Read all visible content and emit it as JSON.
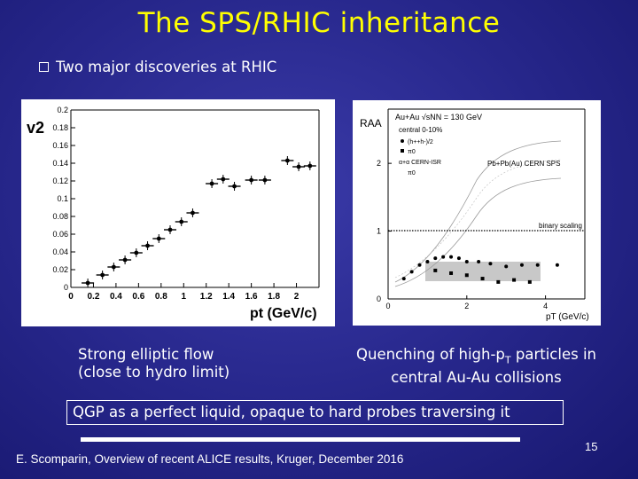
{
  "slide": {
    "title": "The SPS/RHIC inheritance",
    "bullet": "Two major discoveries at RHIC",
    "caption_left_line1": "Strong elliptic flow",
    "caption_left_line2": "(close to hydro limit)",
    "caption_right_line1_pre": "Quenching of high-p",
    "caption_right_line1_sub": "T",
    "caption_right_line1_post": " particles in",
    "caption_right_line2": "central Au-Au collisions",
    "conclusion": "QGP as a perfect liquid, opaque to hard probes traversing it",
    "footer": "E. Scomparin, Overview of recent ALICE results, Kruger, December 2016",
    "page_number": "15"
  },
  "chart_data": [
    {
      "type": "scatter",
      "ylabel": "v2",
      "xlabel": "pt (GeV/c)",
      "xlim": [
        0,
        2.2
      ],
      "ylim": [
        0,
        0.2
      ],
      "xticks": [
        "0",
        "0.2",
        "0.4",
        "0.6",
        "0.8",
        "1",
        "1.2",
        "1.4",
        "1.6",
        "1.8",
        "2"
      ],
      "yticks": [
        "0",
        "0.02",
        "0.04",
        "0.06",
        "0.08",
        "0.1",
        "0.12",
        "0.14",
        "0.16",
        "0.18",
        "0.2"
      ],
      "x": [
        0.15,
        0.28,
        0.38,
        0.48,
        0.58,
        0.68,
        0.78,
        0.88,
        0.98,
        1.08,
        1.25,
        1.35,
        1.45,
        1.6,
        1.72,
        1.92,
        2.02,
        2.12
      ],
      "y": [
        0.005,
        0.014,
        0.023,
        0.031,
        0.039,
        0.047,
        0.055,
        0.065,
        0.074,
        0.084,
        0.117,
        0.122,
        0.114,
        0.121,
        0.121,
        0.143,
        0.136,
        0.137
      ]
    },
    {
      "type": "scatter",
      "ylabel": "RAA",
      "xlabel": "pT (GeV/c)",
      "xlim": [
        0,
        5
      ],
      "ylim": [
        0,
        2.8
      ],
      "xticks": [
        "0",
        "2",
        "4"
      ],
      "yticks": [
        "0",
        "1",
        "2"
      ],
      "legend": [
        "Au+Au √sNN = 130 GeV",
        "central 0-10%",
        "(h++h-)/2",
        "π0",
        "α+α CERN-ISR",
        "π0"
      ],
      "annotations": [
        "Pb+Pb(Au) CERN SPS",
        "binary scaling"
      ],
      "series": [
        {
          "name": "(h++h-)/2",
          "x": [
            0.4,
            0.6,
            0.8,
            1.0,
            1.2,
            1.4,
            1.6,
            1.8,
            2.0,
            2.3,
            2.6,
            3.0,
            3.4,
            3.8,
            4.3
          ],
          "y": [
            0.3,
            0.4,
            0.5,
            0.55,
            0.6,
            0.62,
            0.62,
            0.6,
            0.55,
            0.55,
            0.52,
            0.48,
            0.5,
            0.5,
            0.5
          ]
        },
        {
          "name": "π0",
          "x": [
            1.2,
            1.6,
            2.0,
            2.4,
            2.8,
            3.2,
            3.6
          ],
          "y": [
            0.42,
            0.38,
            0.35,
            0.3,
            0.25,
            0.28,
            0.25
          ]
        }
      ]
    }
  ]
}
